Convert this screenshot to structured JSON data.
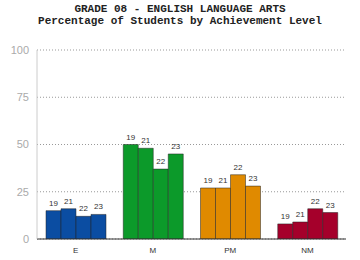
{
  "chart_data": {
    "type": "bar",
    "title": "GRADE 08 - ENGLISH LANGUAGE ARTS",
    "subtitle": "Percentage of Students by Achievement Level",
    "categories": [
      "E",
      "M",
      "PM",
      "NM"
    ],
    "series": [
      {
        "name": "19",
        "values": [
          15,
          50,
          27,
          8
        ]
      },
      {
        "name": "21",
        "values": [
          16,
          48,
          27,
          9
        ]
      },
      {
        "name": "22",
        "values": [
          12,
          37,
          34,
          16
        ]
      },
      {
        "name": "23",
        "values": [
          13,
          45,
          28,
          14
        ]
      }
    ],
    "colors": [
      "#0b4da2",
      "#0c9a2a",
      "#e08a00",
      "#a5002b"
    ],
    "ylim": [
      0,
      100
    ],
    "yticks": [
      0,
      25,
      50,
      75,
      100
    ],
    "grid": true
  }
}
